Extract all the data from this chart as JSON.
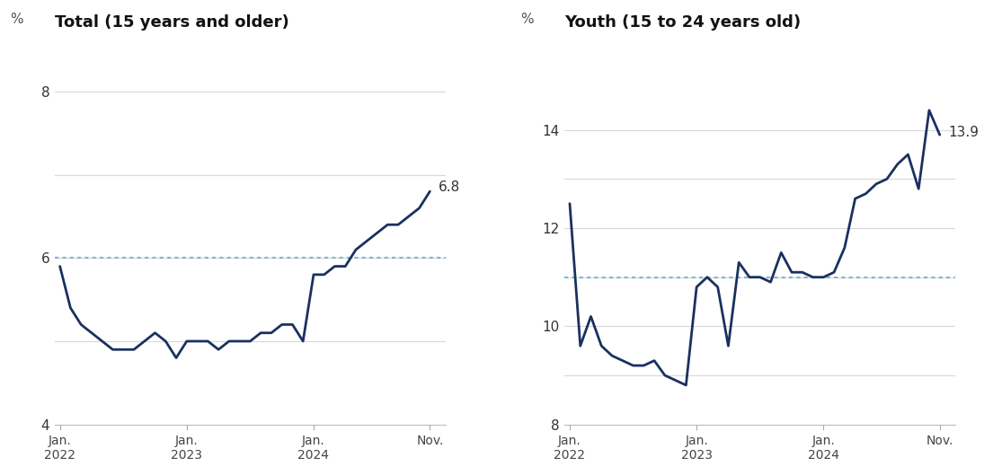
{
  "total_title": "Total (15 years and older)",
  "youth_title": "Youth (15 to 24 years old)",
  "pct_label": "%",
  "line_color": "#1b3060",
  "dashed_line_color": "#7ab8d4",
  "bg_color": "#ffffff",
  "grid_color": "#d8d8d8",
  "total_data": [
    5.9,
    5.4,
    5.2,
    5.1,
    5.0,
    4.9,
    4.9,
    4.9,
    5.0,
    5.1,
    5.0,
    4.8,
    5.0,
    5.0,
    5.0,
    4.9,
    5.0,
    5.0,
    5.0,
    5.1,
    5.1,
    5.2,
    5.2,
    5.0,
    5.8,
    5.8,
    5.9,
    5.9,
    6.1,
    6.2,
    6.3,
    6.4,
    6.4,
    6.5,
    6.6,
    6.8
  ],
  "youth_data": [
    12.5,
    9.6,
    10.2,
    9.6,
    9.4,
    9.3,
    9.2,
    9.2,
    9.3,
    9.0,
    8.9,
    8.8,
    10.8,
    11.0,
    10.8,
    9.6,
    11.3,
    11.0,
    11.0,
    10.9,
    11.5,
    11.1,
    11.1,
    11.0,
    11.0,
    11.1,
    11.6,
    12.6,
    12.7,
    12.9,
    13.0,
    13.3,
    13.5,
    12.8,
    14.4,
    13.9
  ],
  "total_ref_line": 6.0,
  "youth_ref_line": 11.0,
  "total_ylim": [
    4.0,
    8.6
  ],
  "youth_ylim": [
    8.0,
    15.8
  ],
  "total_yticks": [
    4,
    6,
    8
  ],
  "youth_yticks": [
    8,
    10,
    12,
    14
  ],
  "total_grid_lines": [
    5.0,
    6.0,
    7.0,
    8.0
  ],
  "youth_grid_lines": [
    9.0,
    10.0,
    11.0,
    12.0,
    13.0,
    14.0
  ],
  "total_annotation": "6.8",
  "youth_annotation": "13.9",
  "xlabel_ticks": [
    0,
    12,
    24,
    35
  ],
  "xlabel_labels": [
    "Jan.\n2022",
    "Jan.\n2023",
    "Jan.\n2024",
    "Nov."
  ]
}
